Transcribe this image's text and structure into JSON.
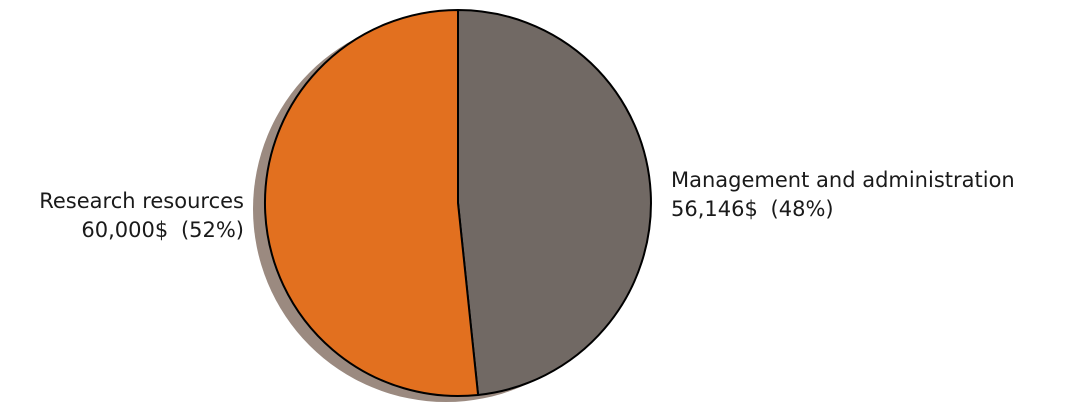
{
  "chart_data": {
    "type": "pie",
    "shadow": true,
    "slices": [
      {
        "label": "Management and administration",
        "value": 56146,
        "value_text": "56,146$",
        "percent_text": "(48%)",
        "color": "#716964"
      },
      {
        "label": "Research resources",
        "value": 60000,
        "value_text": "60,000$",
        "percent_text": "(52%)",
        "color": "#e2701f"
      }
    ]
  },
  "colors": {
    "edge": "#000000",
    "shadow": "#9b8a80"
  }
}
